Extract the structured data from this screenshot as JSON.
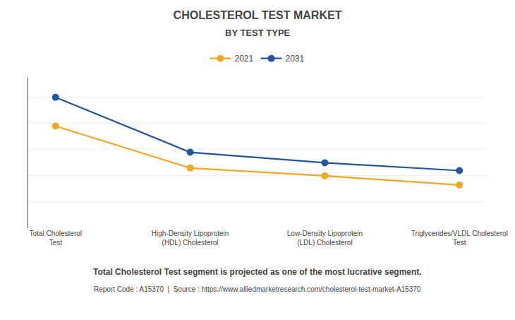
{
  "chart_data": {
    "type": "line",
    "title": "CHOLESTEROL TEST MARKET",
    "subtitle": "BY TEST TYPE",
    "categories": [
      "Total Cholesterol\nTest",
      "High-Density Lipoprotein\n(HDL) Cholesterol",
      "Low-Density Lipoprotein\n(LDL) Cholesterol",
      "Triglycerides/VLDL Cholesterol\nTest"
    ],
    "series": [
      {
        "name": "2021",
        "color": "#F5A623",
        "values": [
          0.78,
          0.46,
          0.4,
          0.33
        ]
      },
      {
        "name": "2031",
        "color": "#2355A0",
        "values": [
          1.0,
          0.58,
          0.5,
          0.44
        ]
      }
    ],
    "ylim": [
      0.0,
      1.15
    ],
    "yticks": [
      0.2,
      0.4,
      0.6,
      0.8,
      1.0
    ],
    "grid": true,
    "tick_labels": "x",
    "legend": "top",
    "marker": "circle",
    "annotations": [
      "Total Cholesterol Test segment is projected as one of the most lucrative segment.",
      "Report Code : A15370  |  Source : https://www.alliedmarketresearch.com/cholesterol-test-market-A15370"
    ]
  }
}
